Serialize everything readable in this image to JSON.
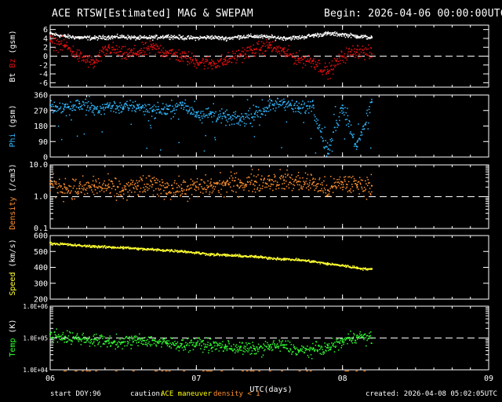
{
  "header": {
    "title": "ACE RTSW[Estimated] MAG & SWEPAM",
    "begin": "Begin: 2026-04-06 00:00:00UTC"
  },
  "footer": {
    "start_doy_label": "start DOY:",
    "start_doy": "96",
    "caution_label": "caution:",
    "ace_maneuver": "ACE maneuver",
    "density_flag": "density < 1",
    "created": "created: 2026-04-08 05:02:05UTC"
  },
  "colors": {
    "bt": "#ffffff",
    "bz": "#e01010",
    "phi": "#30b8ff",
    "density": "#ff9030",
    "speed": "#ffff30",
    "temp": "#30ff30",
    "axis": "#ffffff",
    "maneuver": "#ffff00",
    "flag": "#ff9030"
  },
  "chart_data": [
    {
      "type": "scatter",
      "title": "Bt Bz (gsm)",
      "ylabel_parts": [
        "Bt",
        "Bz",
        "(gsm)"
      ],
      "ylim": [
        -7,
        7
      ],
      "yticks": [
        6,
        4,
        2,
        0,
        -2,
        -4,
        -6
      ],
      "reference_line": 0,
      "xlim": [
        0,
        3
      ],
      "series": [
        {
          "name": "Bt",
          "color": "#ffffff",
          "noise": 0.35,
          "x": [
            0.0,
            0.1,
            0.2,
            0.3,
            0.4,
            0.5,
            0.6,
            0.7,
            0.8,
            0.9,
            1.0,
            1.1,
            1.2,
            1.3,
            1.4,
            1.5,
            1.6,
            1.7,
            1.8,
            1.9,
            2.0,
            2.1,
            2.2
          ],
          "values": [
            5.2,
            4.6,
            4.3,
            4.2,
            4.4,
            4.5,
            4.2,
            4.3,
            4.6,
            4.3,
            4.2,
            4.4,
            4.1,
            4.5,
            4.6,
            4.4,
            4.2,
            4.3,
            4.8,
            5.2,
            5.0,
            4.6,
            4.3
          ]
        },
        {
          "name": "Bz",
          "color": "#e01010",
          "noise": 1.2,
          "x": [
            0.0,
            0.1,
            0.2,
            0.3,
            0.4,
            0.5,
            0.6,
            0.7,
            0.8,
            0.9,
            1.0,
            1.1,
            1.2,
            1.3,
            1.4,
            1.5,
            1.6,
            1.7,
            1.8,
            1.9,
            2.0,
            2.1,
            2.2
          ],
          "values": [
            3.5,
            2.5,
            0.0,
            -1.5,
            2.0,
            0.5,
            1.0,
            2.0,
            1.0,
            0.0,
            -1.0,
            -1.5,
            -1.0,
            0.5,
            1.5,
            2.5,
            1.0,
            -0.5,
            -1.0,
            -3.5,
            0.0,
            1.5,
            0.5
          ]
        }
      ]
    },
    {
      "type": "scatter",
      "title": "Phi (gsm)",
      "ylabel_parts": [
        "Phi",
        "(gsm)"
      ],
      "ylim": [
        0,
        360
      ],
      "yticks": [
        360,
        270,
        180,
        90,
        0
      ],
      "xlim": [
        0,
        3
      ],
      "series": [
        {
          "name": "Phi",
          "color": "#30b8ff",
          "noise": 30,
          "x": [
            0.0,
            0.1,
            0.2,
            0.3,
            0.4,
            0.5,
            0.6,
            0.7,
            0.8,
            0.9,
            1.0,
            1.1,
            1.2,
            1.3,
            1.4,
            1.5,
            1.6,
            1.7,
            1.8,
            1.9,
            2.0,
            2.1,
            2.2
          ],
          "values": [
            300,
            290,
            310,
            280,
            300,
            290,
            300,
            270,
            280,
            300,
            260,
            250,
            230,
            220,
            250,
            300,
            320,
            280,
            300,
            20,
            300,
            60,
            320
          ]
        }
      ]
    },
    {
      "type": "scatter",
      "title": "Density (/cm3)",
      "ylabel_parts": [
        "Density",
        "(/cm3)"
      ],
      "scale": "log",
      "ylim": [
        0.1,
        10.0
      ],
      "ytick_labels": [
        "10.0",
        "1.0",
        "0.1"
      ],
      "reference_line": 1.0,
      "xlim": [
        0,
        3
      ],
      "series": [
        {
          "name": "Density",
          "color": "#ff9030",
          "noise": 0.25,
          "x": [
            0.0,
            0.1,
            0.2,
            0.3,
            0.4,
            0.5,
            0.6,
            0.7,
            0.8,
            0.9,
            1.0,
            1.1,
            1.2,
            1.3,
            1.4,
            1.5,
            1.6,
            1.7,
            1.8,
            1.9,
            2.0,
            2.1,
            2.2
          ],
          "values": [
            2.5,
            2.0,
            1.8,
            2.2,
            2.0,
            1.6,
            2.2,
            2.4,
            2.0,
            1.8,
            2.0,
            2.2,
            2.5,
            2.8,
            3.0,
            3.2,
            3.3,
            3.0,
            2.8,
            1.6,
            2.8,
            2.4,
            2.2
          ]
        }
      ]
    },
    {
      "type": "scatter",
      "title": "Speed (km/s)",
      "ylabel_parts": [
        "Speed",
        "(km/s)"
      ],
      "ylim": [
        200,
        600
      ],
      "yticks": [
        600,
        500,
        400,
        300,
        200
      ],
      "xlim": [
        0,
        3
      ],
      "series": [
        {
          "name": "Speed",
          "color": "#ffff30",
          "noise": 6,
          "x": [
            0.0,
            0.1,
            0.2,
            0.3,
            0.4,
            0.5,
            0.6,
            0.7,
            0.8,
            0.9,
            1.0,
            1.1,
            1.2,
            1.3,
            1.4,
            1.5,
            1.6,
            1.7,
            1.8,
            1.9,
            2.0,
            2.1,
            2.2
          ],
          "values": [
            555,
            548,
            540,
            535,
            530,
            528,
            520,
            515,
            510,
            505,
            495,
            485,
            480,
            475,
            470,
            462,
            455,
            450,
            440,
            425,
            415,
            400,
            390
          ]
        }
      ]
    },
    {
      "type": "scatter",
      "title": "Temp (K)",
      "ylabel_parts": [
        "Temp",
        "(K)"
      ],
      "scale": "log",
      "ylim": [
        10000,
        1000000
      ],
      "ytick_labels": [
        "1.0E+06",
        "1.0E+05",
        "1.0E+04"
      ],
      "reference_line": 100000,
      "xlim": [
        0,
        3
      ],
      "series": [
        {
          "name": "Temp",
          "color": "#30ff30",
          "noise": 0.15,
          "x": [
            0.0,
            0.1,
            0.2,
            0.3,
            0.4,
            0.5,
            0.6,
            0.7,
            0.8,
            0.9,
            1.0,
            1.1,
            1.2,
            1.3,
            1.4,
            1.5,
            1.6,
            1.7,
            1.8,
            1.9,
            2.0,
            2.1,
            2.2
          ],
          "values": [
            130000,
            110000,
            100000,
            90000,
            80000,
            75000,
            90000,
            85000,
            70000,
            65000,
            70000,
            60000,
            55000,
            50000,
            45000,
            55000,
            60000,
            40000,
            45000,
            50000,
            80000,
            120000,
            100000
          ]
        }
      ]
    }
  ],
  "x_axis": {
    "xlabel": "UTC(days)",
    "xlim": [
      0,
      3
    ],
    "ticks": [
      0,
      1,
      2,
      3
    ],
    "tick_labels": [
      "06",
      "07",
      "08",
      "09"
    ]
  }
}
